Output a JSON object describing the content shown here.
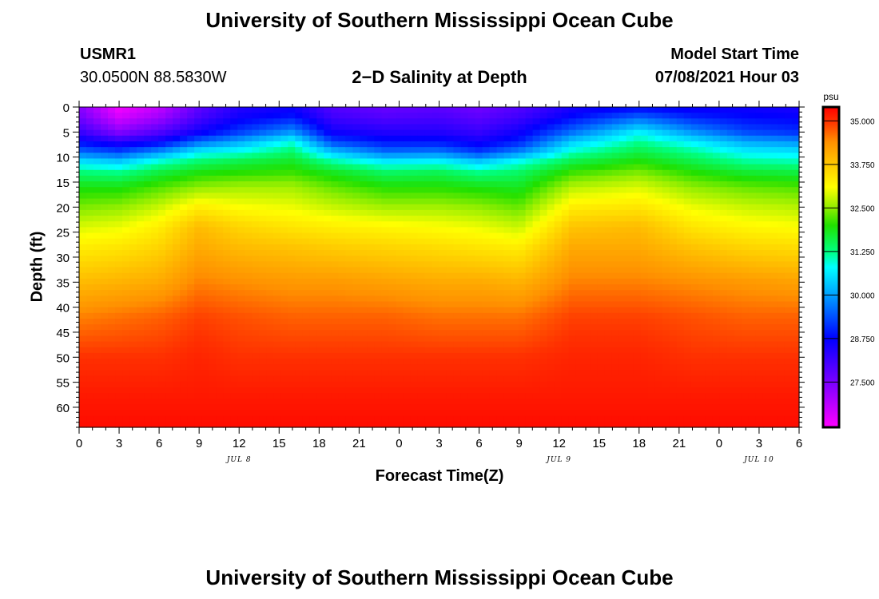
{
  "page": {
    "title_top": "University of Southern Mississippi Ocean Cube",
    "title_bottom": "University of Southern Mississippi Ocean Cube",
    "station_id": "USMR1",
    "coordinates": "30.0500N  88.5830W",
    "subtitle": "2−D Salinity at Depth",
    "model_start_label": "Model Start Time",
    "model_start_value": "07/08/2021 Hour 03"
  },
  "chart_data": {
    "type": "heatmap",
    "title": "2−D Salinity at Depth",
    "xlabel": "Forecast Time(Z)",
    "ylabel": "Depth (ft)",
    "x_range_hours": [
      0,
      54
    ],
    "y_range_ft": [
      0,
      64
    ],
    "x_ticks": [
      {
        "h": 0,
        "label": "0"
      },
      {
        "h": 3,
        "label": "3"
      },
      {
        "h": 6,
        "label": "6"
      },
      {
        "h": 9,
        "label": "9"
      },
      {
        "h": 12,
        "label": "12"
      },
      {
        "h": 15,
        "label": "15"
      },
      {
        "h": 18,
        "label": "18"
      },
      {
        "h": 21,
        "label": "21"
      },
      {
        "h": 24,
        "label": "0"
      },
      {
        "h": 27,
        "label": "3"
      },
      {
        "h": 30,
        "label": "6"
      },
      {
        "h": 33,
        "label": "9"
      },
      {
        "h": 36,
        "label": "12"
      },
      {
        "h": 39,
        "label": "15"
      },
      {
        "h": 42,
        "label": "18"
      },
      {
        "h": 45,
        "label": "21"
      },
      {
        "h": 48,
        "label": "0"
      },
      {
        "h": 51,
        "label": "3"
      },
      {
        "h": 54,
        "label": "6"
      }
    ],
    "date_labels": [
      {
        "h": 12,
        "label": "JUL 8"
      },
      {
        "h": 36,
        "label": "JUL 9"
      },
      {
        "h": 51,
        "label": "JUL 10"
      }
    ],
    "y_ticks": [
      0,
      5,
      10,
      15,
      20,
      25,
      30,
      35,
      40,
      45,
      50,
      55,
      60
    ],
    "colorbar": {
      "unit": "psu",
      "min": 26.2,
      "max": 35.4,
      "tick_values": [
        35.0,
        33.75,
        32.5,
        31.25,
        30.0,
        28.75,
        27.5
      ],
      "tick_labels": [
        "35.000",
        "33.750",
        "32.500",
        "31.250",
        "30.000",
        "28.750",
        "27.500"
      ],
      "color_stops": [
        {
          "v": 26.2,
          "color": "#ff00ff"
        },
        {
          "v": 27.5,
          "color": "#7a00ff"
        },
        {
          "v": 28.75,
          "color": "#0000ff"
        },
        {
          "v": 30.0,
          "color": "#00a0ff"
        },
        {
          "v": 30.8,
          "color": "#00ffff"
        },
        {
          "v": 31.25,
          "color": "#00ff80"
        },
        {
          "v": 32.0,
          "color": "#20e000"
        },
        {
          "v": 32.5,
          "color": "#90ee00"
        },
        {
          "v": 33.1,
          "color": "#ffff00"
        },
        {
          "v": 33.75,
          "color": "#ffc800"
        },
        {
          "v": 34.4,
          "color": "#ff9000"
        },
        {
          "v": 35.0,
          "color": "#ff3000"
        },
        {
          "v": 35.4,
          "color": "#ff0000"
        }
      ]
    },
    "salinity_profiles": {
      "depths_ft": [
        0,
        2,
        5,
        7,
        9,
        11,
        13,
        16,
        20,
        24,
        28,
        35,
        42,
        50,
        58,
        64
      ],
      "columns": [
        {
          "h": 0,
          "values": [
            27.4,
            27.6,
            28.2,
            28.8,
            29.6,
            30.6,
            31.3,
            31.9,
            32.4,
            32.9,
            33.3,
            33.9,
            34.5,
            35.0,
            35.2,
            35.3
          ]
        },
        {
          "h": 3,
          "values": [
            26.3,
            26.6,
            27.4,
            28.4,
            29.3,
            30.4,
            31.2,
            31.9,
            32.5,
            33.0,
            33.4,
            34.0,
            34.6,
            35.0,
            35.2,
            35.3
          ]
        },
        {
          "h": 6,
          "values": [
            26.8,
            27.1,
            27.9,
            28.7,
            29.9,
            31.0,
            31.6,
            32.2,
            32.8,
            33.3,
            33.6,
            34.1,
            34.7,
            35.0,
            35.2,
            35.3
          ]
        },
        {
          "h": 9,
          "values": [
            27.8,
            28.0,
            28.6,
            29.6,
            30.7,
            31.4,
            31.9,
            32.5,
            33.3,
            33.9,
            34.1,
            34.5,
            34.9,
            35.1,
            35.2,
            35.3
          ]
        },
        {
          "h": 12,
          "values": [
            28.4,
            28.6,
            29.2,
            30.1,
            30.9,
            31.6,
            32.0,
            32.6,
            33.1,
            33.6,
            33.9,
            34.4,
            34.8,
            35.0,
            35.2,
            35.3
          ]
        },
        {
          "h": 16,
          "values": [
            28.6,
            28.9,
            29.9,
            30.9,
            31.4,
            31.8,
            32.1,
            32.6,
            33.0,
            33.4,
            33.8,
            34.3,
            34.7,
            35.0,
            35.2,
            35.3
          ]
        },
        {
          "h": 19,
          "values": [
            27.9,
            28.1,
            28.6,
            29.3,
            30.3,
            31.2,
            31.8,
            32.3,
            32.8,
            33.3,
            33.7,
            34.3,
            34.7,
            35.0,
            35.2,
            35.3
          ]
        },
        {
          "h": 23,
          "values": [
            27.7,
            27.9,
            28.4,
            28.9,
            29.6,
            30.7,
            31.4,
            32.0,
            32.6,
            33.2,
            33.6,
            34.2,
            34.7,
            35.0,
            35.2,
            35.3
          ]
        },
        {
          "h": 27,
          "values": [
            27.8,
            28.0,
            28.4,
            28.9,
            29.7,
            30.8,
            31.5,
            32.0,
            32.6,
            33.1,
            33.5,
            34.1,
            34.6,
            35.0,
            35.2,
            35.3
          ]
        },
        {
          "h": 30,
          "values": [
            27.6,
            27.8,
            28.2,
            28.6,
            29.2,
            30.4,
            31.2,
            31.9,
            32.5,
            33.0,
            33.4,
            34.1,
            34.6,
            35.0,
            35.2,
            35.3
          ]
        },
        {
          "h": 33,
          "values": [
            27.9,
            28.1,
            28.6,
            29.0,
            29.8,
            30.9,
            31.4,
            31.8,
            32.3,
            32.8,
            33.3,
            34.0,
            34.6,
            35.0,
            35.2,
            35.3
          ]
        },
        {
          "h": 37,
          "values": [
            28.5,
            28.8,
            29.6,
            30.4,
            31.0,
            31.6,
            32.1,
            32.7,
            33.3,
            33.8,
            34.1,
            34.5,
            34.9,
            35.1,
            35.2,
            35.3
          ]
        },
        {
          "h": 42,
          "values": [
            28.7,
            29.5,
            30.7,
            31.2,
            31.6,
            32.0,
            32.4,
            32.9,
            33.4,
            33.9,
            34.1,
            34.5,
            34.9,
            35.1,
            35.2,
            35.3
          ]
        },
        {
          "h": 46,
          "values": [
            28.6,
            29.0,
            29.9,
            30.7,
            31.2,
            31.6,
            32.0,
            32.5,
            33.0,
            33.4,
            33.8,
            34.4,
            34.8,
            35.0,
            35.2,
            35.3
          ]
        },
        {
          "h": 50,
          "values": [
            28.6,
            28.8,
            29.3,
            30.1,
            30.7,
            31.2,
            31.7,
            32.3,
            32.8,
            33.2,
            33.6,
            34.3,
            34.7,
            35.0,
            35.2,
            35.3
          ]
        },
        {
          "h": 54,
          "values": [
            28.5,
            28.7,
            29.1,
            29.9,
            30.6,
            31.1,
            31.6,
            32.2,
            32.7,
            33.1,
            33.5,
            34.2,
            34.7,
            35.0,
            35.2,
            35.3
          ]
        }
      ]
    }
  }
}
